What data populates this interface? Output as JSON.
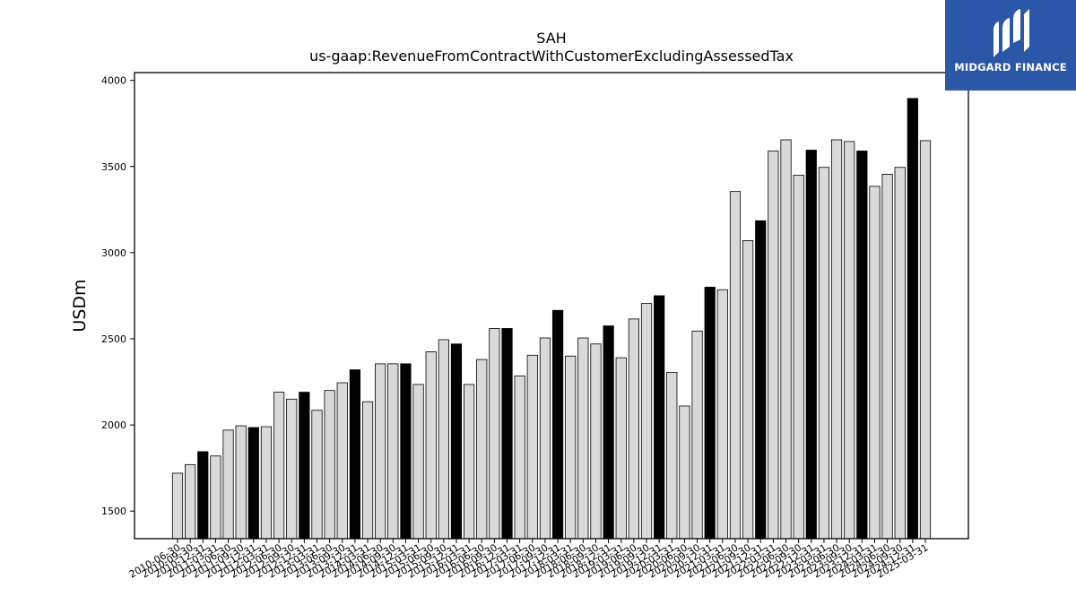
{
  "chart_data": {
    "type": "bar",
    "title": "SAH",
    "subtitle": "us-gaap:RevenueFromContractWithCustomerExcludingAssessedTax",
    "xlabel": "",
    "ylabel": "USDm",
    "ylim": [
      1340,
      4045
    ],
    "yticks": [
      1500,
      2000,
      2500,
      3000,
      3500,
      4000
    ],
    "grid": false,
    "legend": "none",
    "colors": {
      "bar": "#d9d9d9",
      "highlight": "#000000",
      "edge": "#000000"
    },
    "categories": [
      "2010-06-30",
      "2010-09-30",
      "2010-12-31",
      "2011-03-31",
      "2011-06-30",
      "2011-09-30",
      "2011-12-31",
      "2012-03-31",
      "2012-06-30",
      "2012-09-30",
      "2012-12-31",
      "2013-03-31",
      "2013-06-30",
      "2013-09-30",
      "2013-12-31",
      "2014-03-31",
      "2014-06-30",
      "2014-09-30",
      "2014-12-31",
      "2015-03-31",
      "2015-06-30",
      "2015-09-30",
      "2015-12-31",
      "2016-03-31",
      "2016-06-30",
      "2016-09-30",
      "2016-12-31",
      "2017-03-31",
      "2017-06-30",
      "2017-09-30",
      "2017-12-31",
      "2018-03-31",
      "2018-06-30",
      "2018-09-30",
      "2018-12-31",
      "2019-03-31",
      "2019-06-30",
      "2019-09-30",
      "2019-12-31",
      "2020-03-31",
      "2020-06-30",
      "2020-09-30",
      "2020-12-31",
      "2021-03-31",
      "2021-06-30",
      "2021-09-30",
      "2021-12-31",
      "2022-03-31",
      "2022-06-30",
      "2022-09-30",
      "2022-12-31",
      "2023-03-31",
      "2023-06-30",
      "2023-09-30",
      "2023-12-31",
      "2024-03-31",
      "2024-06-30",
      "2024-09-30",
      "2024-12-31",
      "2025-03-31"
    ],
    "values": [
      1720,
      1770,
      1845,
      1820,
      1970,
      1995,
      1985,
      1990,
      2190,
      2150,
      2190,
      2085,
      2200,
      2245,
      2320,
      2135,
      2355,
      2355,
      2355,
      2235,
      2425,
      2495,
      2470,
      2235,
      2380,
      2560,
      2560,
      2285,
      2405,
      2505,
      2665,
      2400,
      2505,
      2470,
      2575,
      2390,
      2615,
      2705,
      2750,
      2305,
      2110,
      2545,
      2800,
      2785,
      3355,
      3070,
      3185,
      3590,
      3655,
      3450,
      3595,
      3495,
      3655,
      3645,
      3590,
      3385,
      3455,
      3495,
      3895,
      3650
    ],
    "highlight": [
      false,
      false,
      true,
      false,
      false,
      false,
      true,
      false,
      false,
      false,
      true,
      false,
      false,
      false,
      true,
      false,
      false,
      false,
      true,
      false,
      false,
      false,
      true,
      false,
      false,
      false,
      true,
      false,
      false,
      false,
      true,
      false,
      false,
      false,
      true,
      false,
      false,
      false,
      true,
      false,
      false,
      false,
      true,
      false,
      false,
      false,
      true,
      false,
      false,
      false,
      true,
      false,
      false,
      false,
      true,
      false,
      false,
      false,
      true,
      false
    ]
  },
  "logo": {
    "text": "MIDGARD FINANCE",
    "icon": "midgard-logo-icon",
    "background": "#2b57a8"
  }
}
